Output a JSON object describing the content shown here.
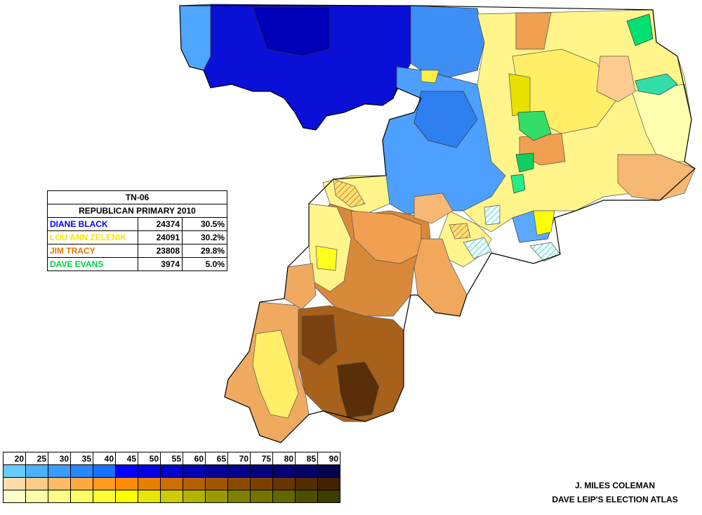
{
  "table": {
    "title": "TN-06",
    "subtitle": "REPUBLICAN PRIMARY 2010",
    "candidates": [
      {
        "name": "DIANE BLACK",
        "votes": "24374",
        "pct": "30.5%",
        "color": "#0000ff"
      },
      {
        "name": "LOU ANN ZELENIK",
        "votes": "24091",
        "pct": "30.2%",
        "color": "#f2e600"
      },
      {
        "name": "JIM TRACY",
        "votes": "23808",
        "pct": "29.8%",
        "color": "#e07800"
      },
      {
        "name": "DAVE EVANS",
        "votes": "3974",
        "pct": "5.0%",
        "color": "#00d04a"
      }
    ]
  },
  "legend": {
    "ticks": [
      "20",
      "25",
      "30",
      "35",
      "40",
      "45",
      "50",
      "55",
      "60",
      "65",
      "70",
      "75",
      "80",
      "85",
      "90"
    ],
    "scales": [
      {
        "candidate": "DIANE BLACK",
        "colors": [
          "#66ccff",
          "#4fb0ff",
          "#3b9cff",
          "#2a86ff",
          "#1a70ff",
          "#0000ff",
          "#0000e6",
          "#0000cc",
          "#0000b3",
          "#000099",
          "#00008c",
          "#000080",
          "#000073",
          "#000066",
          "#00004d"
        ]
      },
      {
        "candidate": "JIM TRACY",
        "colors": [
          "#ffddaa",
          "#ffcc88",
          "#ffbb66",
          "#ffaa44",
          "#ff9922",
          "#ff8c00",
          "#e67e00",
          "#cc6e00",
          "#b36100",
          "#a05500",
          "#8c4a00",
          "#7a4000",
          "#663500",
          "#552b00",
          "#442200"
        ]
      },
      {
        "candidate": "LOU ANN ZELENIK",
        "colors": [
          "#ffffcc",
          "#ffffaa",
          "#ffff88",
          "#ffff66",
          "#ffff33",
          "#ffff00",
          "#e6e600",
          "#cccc00",
          "#b3b300",
          "#999900",
          "#808000",
          "#737300",
          "#666600",
          "#4d4d00",
          "#3d3d00"
        ]
      }
    ]
  },
  "credit": {
    "author": "J. MILES COLEMAN",
    "source": "DAVE LEIP'S ELECTION ATLAS"
  }
}
